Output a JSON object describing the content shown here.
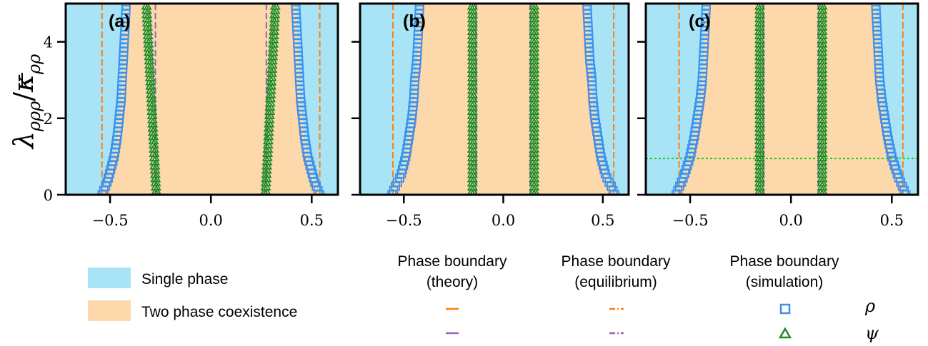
{
  "colors": {
    "single_phase": "#a8e4f5",
    "two_phase": "#fcd8ab",
    "theory": "#ff7f0e",
    "equilibrium": "#9467bd",
    "rho_marker": "#3f8fe8",
    "psi_marker": "#1a8c2a",
    "threshold": "#22cc22"
  },
  "y_axis_label": "λ_ρρρ / κ̄_ρρ",
  "ylabel_parts": {
    "lambda": "λ",
    "lambda_sub": "ρρρ",
    "slash": "/",
    "kappa": "κ",
    "kappa_sub": "ρρ"
  },
  "chart_data": [
    {
      "type": "scatter",
      "panel": "(a)",
      "xlim": [
        -0.72,
        0.63
      ],
      "ylim": [
        0,
        5
      ],
      "xticks": [
        -0.5,
        0.0,
        0.5
      ],
      "xtick_labels": [
        "−0.5",
        "0.0",
        "0.5"
      ],
      "yticks": [
        0,
        2,
        4
      ],
      "ytick_labels": [
        "0",
        "2",
        "4"
      ],
      "theory_boundary_rho": [
        -0.54,
        0.54
      ],
      "theory_boundary_psi": [
        -0.275,
        0.275
      ],
      "equilibrium_boundary_rho": [
        -0.54,
        0.54
      ],
      "equilibrium_boundary_psi": [
        -0.275,
        0.275
      ],
      "rho_sim": {
        "y": [
          0,
          0.25,
          0.5,
          1,
          1.5,
          2,
          2.5,
          3,
          3.5,
          4,
          4.5,
          5
        ],
        "x_right": [
          0.54,
          0.52,
          0.505,
          0.48,
          0.465,
          0.455,
          0.445,
          0.44,
          0.435,
          0.43,
          0.425,
          0.42
        ]
      },
      "psi_sim": {
        "y": [
          0,
          0.5,
          1,
          1.5,
          2,
          2.5,
          3,
          3.5,
          4,
          4.5,
          5
        ],
        "x_right": [
          0.27,
          0.275,
          0.28,
          0.285,
          0.29,
          0.295,
          0.3,
          0.305,
          0.31,
          0.315,
          0.32
        ]
      },
      "threshold_y": null
    },
    {
      "type": "scatter",
      "panel": "(b)",
      "xlim": [
        -0.72,
        0.63
      ],
      "ylim": [
        0,
        5
      ],
      "xticks": [
        -0.5,
        0.0,
        0.5
      ],
      "xtick_labels": [
        "−0.5",
        "0.0",
        "0.5"
      ],
      "yticks": [
        0,
        2,
        4
      ],
      "ytick_labels": [
        "",
        "",
        ""
      ],
      "theory_boundary_rho": [
        -0.555,
        0.555
      ],
      "theory_boundary_psi": [
        -0.135,
        0.135
      ],
      "equilibrium_boundary_rho": [
        -0.555,
        0.555
      ],
      "equilibrium_boundary_psi": [
        -0.135,
        0.135
      ],
      "rho_sim": {
        "y": [
          0,
          0.25,
          0.5,
          1,
          1.5,
          2,
          2.5,
          3,
          3.5,
          4,
          4.5,
          5
        ],
        "x_right": [
          0.56,
          0.54,
          0.515,
          0.49,
          0.475,
          0.46,
          0.45,
          0.445,
          0.435,
          0.43,
          0.425,
          0.42
        ]
      },
      "psi_sim": {
        "y": [
          0,
          0.5,
          1,
          1.5,
          2,
          2.5,
          3,
          3.5,
          4,
          4.5,
          5
        ],
        "x_right": [
          0.155,
          0.155,
          0.155,
          0.155,
          0.155,
          0.155,
          0.155,
          0.155,
          0.155,
          0.155,
          0.155
        ]
      },
      "threshold_y": null
    },
    {
      "type": "scatter",
      "panel": "(c)",
      "xlim": [
        -0.72,
        0.63
      ],
      "ylim": [
        0,
        5
      ],
      "xticks": [
        -0.5,
        0.0,
        0.5
      ],
      "xtick_labels": [
        "−0.5",
        "0.0",
        "0.5"
      ],
      "yticks": [
        0,
        2,
        4
      ],
      "ytick_labels": [
        "",
        "",
        ""
      ],
      "theory_boundary_rho": [
        -0.555,
        0.555
      ],
      "theory_boundary_psi": [
        -0.135,
        0.135
      ],
      "equilibrium_boundary_rho": [
        -0.555,
        0.555
      ],
      "equilibrium_boundary_psi": [
        -0.135,
        0.135
      ],
      "rho_sim": {
        "y": [
          0,
          0.25,
          0.5,
          1,
          1.5,
          2,
          2.5,
          3,
          3.5,
          4,
          4.5,
          5
        ],
        "x_right": [
          0.57,
          0.55,
          0.53,
          0.5,
          0.48,
          0.465,
          0.45,
          0.44,
          0.435,
          0.43,
          0.425,
          0.42
        ]
      },
      "psi_sim": {
        "y": [
          0,
          0.5,
          1,
          1.5,
          2,
          2.5,
          3,
          3.5,
          4,
          4.5,
          5
        ],
        "x_right": [
          0.155,
          0.155,
          0.155,
          0.155,
          0.155,
          0.155,
          0.155,
          0.155,
          0.155,
          0.155,
          0.155
        ]
      },
      "threshold_y": 0.95
    }
  ],
  "legend_left": [
    {
      "label": "Single phase",
      "color_key": "single_phase"
    },
    {
      "label": "Two phase coexistence",
      "color_key": "two_phase"
    }
  ],
  "legend_right": {
    "headers": [
      [
        "Phase boundary",
        "(theory)"
      ],
      [
        "Phase boundary",
        "(equilibrium)"
      ],
      [
        "Phase boundary",
        "(simulation)"
      ]
    ],
    "symbols": [
      "ρ",
      "ψ"
    ]
  }
}
